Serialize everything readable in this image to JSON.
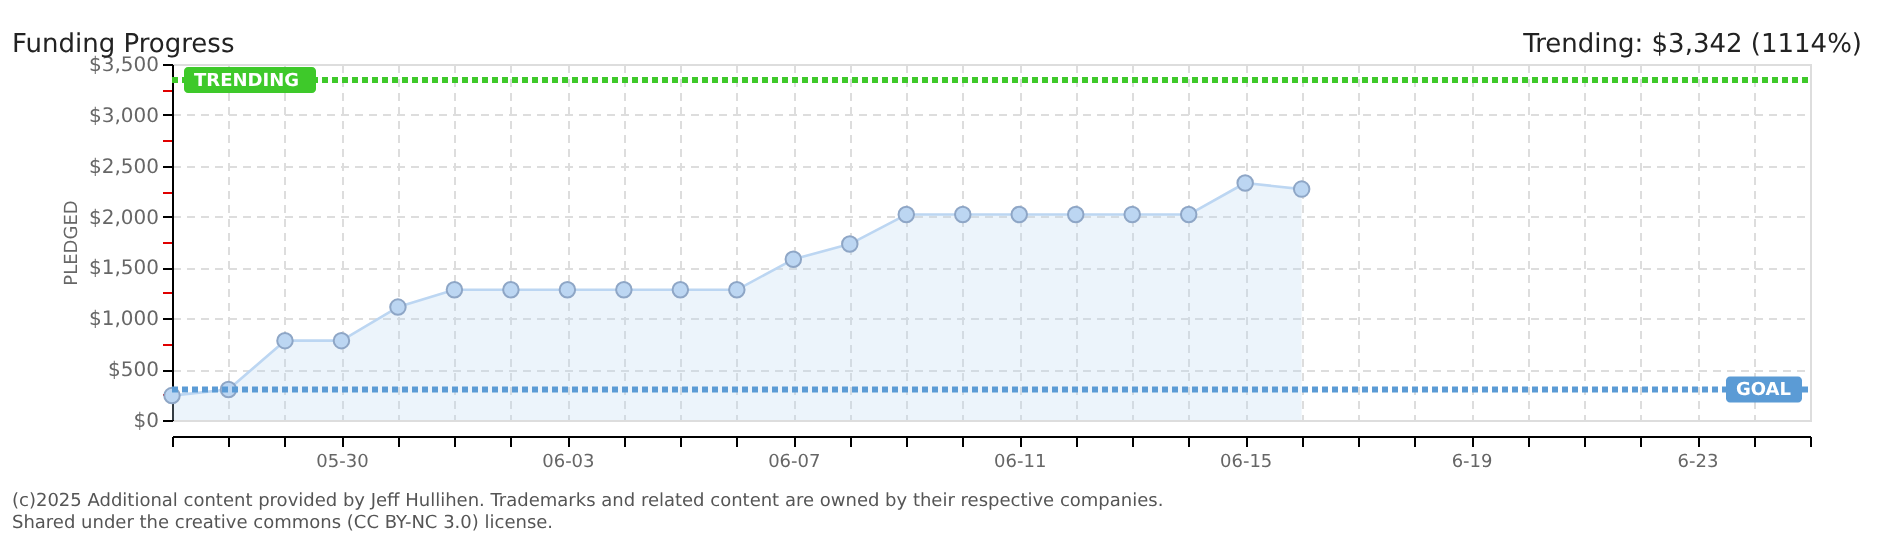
{
  "chart_data": {
    "type": "area",
    "title": "Funding Progress",
    "subtitle": "Trending: $3,342 (1114%)",
    "ylabel": "PLEDGED",
    "annotations": [
      "(c)2025 Additional content provided by Jeff Hullihen. Trademarks and related content are owned by their respective companies.",
      "Shared under the creative commons (CC BY-NC 3.0) license."
    ],
    "x": [
      "2025-05-27",
      "2025-05-28",
      "2025-05-29",
      "2025-05-30",
      "2025-05-31",
      "2025-06-01",
      "2025-06-02",
      "2025-06-03",
      "2025-06-04",
      "2025-06-05",
      "2025-06-06",
      "2025-06-07",
      "2025-06-08",
      "2025-06-09",
      "2025-06-10",
      "2025-06-11",
      "2025-06-12",
      "2025-06-13",
      "2025-06-14",
      "2025-06-15",
      "2025-06-16"
    ],
    "series": [
      {
        "color": "#bcd6f2",
        "values": [
          240,
          300,
          780,
          780,
          1110,
          1280,
          1280,
          1280,
          1280,
          1280,
          1280,
          1580,
          1730,
          2020,
          2020,
          2020,
          2020,
          2020,
          2020,
          2330,
          2270
        ]
      }
    ],
    "xlim": [
      "2025-05-27",
      "2025-06-25"
    ],
    "xticks": [
      {
        "value": "2025-05-27",
        "label": null
      },
      {
        "value": "2025-05-28",
        "label": null
      },
      {
        "value": "2025-05-29",
        "label": null
      },
      {
        "value": "2025-05-30",
        "label": "05-30"
      },
      {
        "value": "2025-05-31",
        "label": null
      },
      {
        "value": "2025-06-01",
        "label": null
      },
      {
        "value": "2025-06-02",
        "label": null
      },
      {
        "value": "2025-06-03",
        "label": "06-03"
      },
      {
        "value": "2025-06-04",
        "label": null
      },
      {
        "value": "2025-06-05",
        "label": null
      },
      {
        "value": "2025-06-06",
        "label": null
      },
      {
        "value": "2025-06-07",
        "label": "06-07"
      },
      {
        "value": "2025-06-08",
        "label": null
      },
      {
        "value": "2025-06-09",
        "label": null
      },
      {
        "value": "2025-06-10",
        "label": null
      },
      {
        "value": "2025-06-11",
        "label": "06-11"
      },
      {
        "value": "2025-06-12",
        "label": null
      },
      {
        "value": "2025-06-13",
        "label": null
      },
      {
        "value": "2025-06-14",
        "label": null
      },
      {
        "value": "2025-06-15",
        "label": "06-15"
      },
      {
        "value": "2025-06-16",
        "label": null
      },
      {
        "value": "2025-06-17",
        "label": null
      },
      {
        "value": "2025-06-18",
        "label": null
      },
      {
        "value": "2025-06-19",
        "label": "6-19"
      },
      {
        "value": "2025-06-20",
        "label": null
      },
      {
        "value": "2025-06-21",
        "label": null
      },
      {
        "value": "2025-06-22",
        "label": null
      },
      {
        "value": "2025-06-23",
        "label": "6-23"
      },
      {
        "value": "2025-06-24",
        "label": null
      },
      {
        "value": "2025-06-25",
        "label": null
      }
    ],
    "ylim": [
      0,
      3500
    ],
    "yticks": [
      {
        "value": 0,
        "label": "$0"
      },
      {
        "value": 250,
        "label": null
      },
      {
        "value": 500,
        "label": "$500"
      },
      {
        "value": 750,
        "label": null
      },
      {
        "value": 1000,
        "label": "$1,000"
      },
      {
        "value": 1250,
        "label": null
      },
      {
        "value": 1500,
        "label": "$1,500"
      },
      {
        "value": 1750,
        "label": null
      },
      {
        "value": 2000,
        "label": "$2,000"
      },
      {
        "value": 2250,
        "label": null
      },
      {
        "value": 2500,
        "label": "$2,500"
      },
      {
        "value": 2750,
        "label": null
      },
      {
        "value": 3000,
        "label": "$3,000"
      },
      {
        "value": 3250,
        "label": null
      },
      {
        "value": 3500,
        "label": "$3,500"
      }
    ],
    "grid": true,
    "marker": "circle",
    "ref_lines": [
      {
        "axis": "y",
        "value": 3342,
        "label": "TRENDING",
        "color": "#3ec92a",
        "line_style": "dotted"
      },
      {
        "axis": "y",
        "value": 300,
        "label": "GOAL",
        "color": "#5b9bd5",
        "line_style": "dotted"
      }
    ]
  }
}
